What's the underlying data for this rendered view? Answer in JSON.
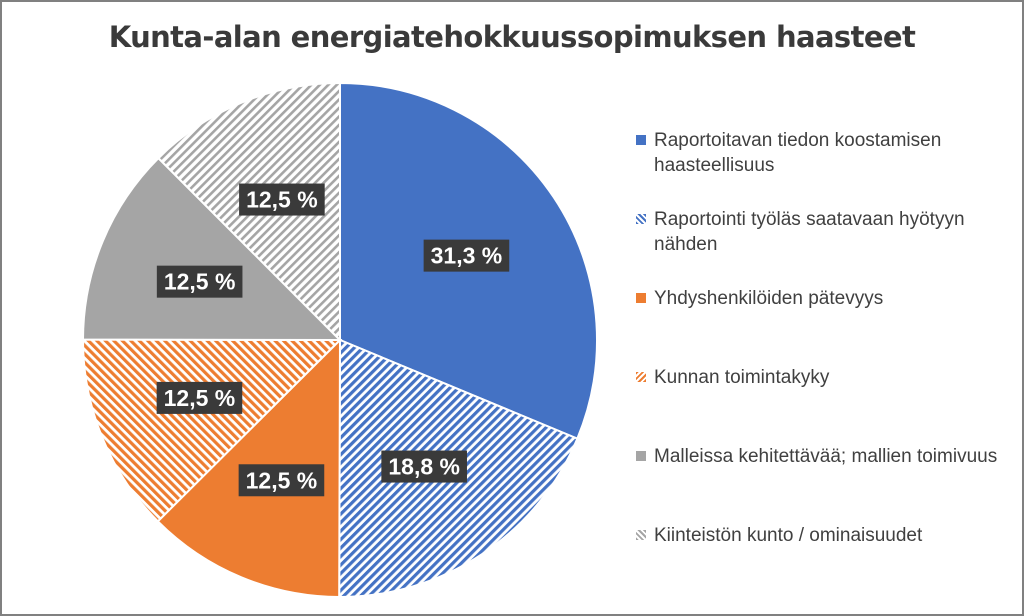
{
  "chart_data": {
    "type": "pie",
    "title": "Kunta-alan energiatehokkuussopimuksen haasteet",
    "legend_position": "right",
    "slices": [
      {
        "label": "Raportoitavan tiedon koostamisen haasteellisuus",
        "value": 31.3,
        "data_label": "31,3 %",
        "color": "#4472C4",
        "pattern": "solid"
      },
      {
        "label": "Raportointi työläs saatavaan hyötyyn nähden",
        "value": 18.8,
        "data_label": "18,8 %",
        "color": "#4472C4",
        "pattern": "diagonal-up"
      },
      {
        "label": "Yhdyshenkilöiden pätevyys",
        "value": 12.5,
        "data_label": "12,5 %",
        "color": "#ED7D31",
        "pattern": "solid"
      },
      {
        "label": "Kunnan toimintakyky",
        "value": 12.5,
        "data_label": "12,5 %",
        "color": "#ED7D31",
        "pattern": "diagonal-down"
      },
      {
        "label": "Malleissa kehitettävää; mallien toimivuus",
        "value": 12.5,
        "data_label": "12,5 %",
        "color": "#A5A5A5",
        "pattern": "solid"
      },
      {
        "label": "Kiinteistön kunto / ominaisuudet",
        "value": 12.5,
        "data_label": "12,5 %",
        "color": "#A5A5A5",
        "pattern": "diagonal-up"
      }
    ]
  }
}
